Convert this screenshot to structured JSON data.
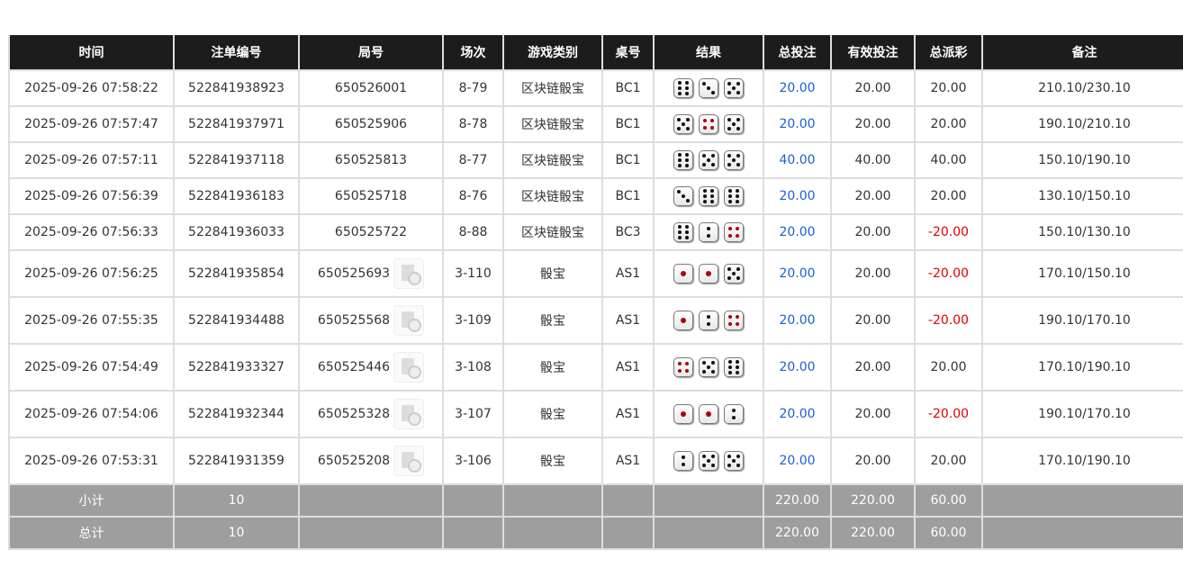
{
  "headers": [
    "时间",
    "注单编号",
    "局号",
    "场次",
    "游戏类别",
    "桌号",
    "结果",
    "总投注",
    "有效投注",
    "总派彩",
    "备注"
  ],
  "rows": [
    {
      "time": "2025-09-26 07:58:22",
      "id": "522841938923",
      "round": "650526001",
      "session": "8-79",
      "game": "区块链骰宝",
      "table": "BC1",
      "dice": [
        6,
        3,
        5
      ],
      "bet": "20.00",
      "valid": "20.00",
      "payout": "20.00",
      "note": "210.10/230.10",
      "video": false
    },
    {
      "time": "2025-09-26 07:57:47",
      "id": "522841937971",
      "round": "650525906",
      "session": "8-78",
      "game": "区块链骰宝",
      "table": "BC1",
      "dice": [
        5,
        4,
        5
      ],
      "bet": "20.00",
      "valid": "20.00",
      "payout": "20.00",
      "note": "190.10/210.10",
      "video": false
    },
    {
      "time": "2025-09-26 07:57:11",
      "id": "522841937118",
      "round": "650525813",
      "session": "8-77",
      "game": "区块链骰宝",
      "table": "BC1",
      "dice": [
        6,
        5,
        5
      ],
      "bet": "40.00",
      "valid": "40.00",
      "payout": "40.00",
      "note": "150.10/190.10",
      "video": false
    },
    {
      "time": "2025-09-26 07:56:39",
      "id": "522841936183",
      "round": "650525718",
      "session": "8-76",
      "game": "区块链骰宝",
      "table": "BC1",
      "dice": [
        3,
        6,
        6
      ],
      "bet": "20.00",
      "valid": "20.00",
      "payout": "20.00",
      "note": "130.10/150.10",
      "video": false
    },
    {
      "time": "2025-09-26 07:56:33",
      "id": "522841936033",
      "round": "650525722",
      "session": "8-88",
      "game": "区块链骰宝",
      "table": "BC3",
      "dice": [
        6,
        2,
        4
      ],
      "bet": "20.00",
      "valid": "20.00",
      "payout": "-20.00",
      "note": "150.10/130.10",
      "video": false
    },
    {
      "time": "2025-09-26 07:56:25",
      "id": "522841935854",
      "round": "650525693",
      "session": "3-110",
      "game": "骰宝",
      "table": "AS1",
      "dice": [
        1,
        1,
        5
      ],
      "bet": "20.00",
      "valid": "20.00",
      "payout": "-20.00",
      "note": "170.10/150.10",
      "video": true
    },
    {
      "time": "2025-09-26 07:55:35",
      "id": "522841934488",
      "round": "650525568",
      "session": "3-109",
      "game": "骰宝",
      "table": "AS1",
      "dice": [
        1,
        2,
        4
      ],
      "bet": "20.00",
      "valid": "20.00",
      "payout": "-20.00",
      "note": "190.10/170.10",
      "video": true
    },
    {
      "time": "2025-09-26 07:54:49",
      "id": "522841933327",
      "round": "650525446",
      "session": "3-108",
      "game": "骰宝",
      "table": "AS1",
      "dice": [
        4,
        5,
        6
      ],
      "bet": "20.00",
      "valid": "20.00",
      "payout": "20.00",
      "note": "170.10/190.10",
      "video": true
    },
    {
      "time": "2025-09-26 07:54:06",
      "id": "522841932344",
      "round": "650525328",
      "session": "3-107",
      "game": "骰宝",
      "table": "AS1",
      "dice": [
        1,
        1,
        2
      ],
      "bet": "20.00",
      "valid": "20.00",
      "payout": "-20.00",
      "note": "190.10/170.10",
      "video": true
    },
    {
      "time": "2025-09-26 07:53:31",
      "id": "522841931359",
      "round": "650525208",
      "session": "3-106",
      "game": "骰宝",
      "table": "AS1",
      "dice": [
        2,
        5,
        5
      ],
      "bet": "20.00",
      "valid": "20.00",
      "payout": "20.00",
      "note": "170.10/190.10",
      "video": true
    }
  ],
  "footer": [
    {
      "label": "小计",
      "count": "10",
      "bet": "220.00",
      "valid": "220.00",
      "payout": "60.00"
    },
    {
      "label": "总计",
      "count": "10",
      "bet": "220.00",
      "valid": "220.00",
      "payout": "60.00"
    }
  ],
  "colors": {
    "bet": "#1a5fd6",
    "negative": "#e00000",
    "header_bg": "#1c1c1c",
    "footer_bg": "#9e9e9e"
  }
}
